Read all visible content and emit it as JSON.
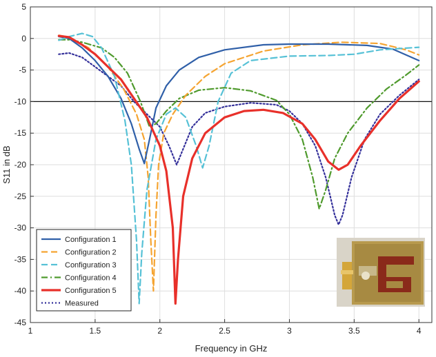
{
  "chart_data": {
    "type": "line",
    "title": "",
    "xlabel": "Frequency in GHz",
    "ylabel": "S11 in dB",
    "xlim": [
      1,
      4.1
    ],
    "ylim": [
      -45,
      5
    ],
    "xticks": [
      "1",
      "1.5",
      "2",
      "2.5",
      "3",
      "3.5",
      "4"
    ],
    "yticks": [
      "5",
      "0",
      "-5",
      "-10",
      "-15",
      "-20",
      "-25",
      "-30",
      "-35",
      "-40",
      "-45"
    ],
    "grid": true,
    "legend_position": "bottom-left",
    "reference_line_y": -10,
    "inset_image": "antenna-prototype-photo",
    "series": [
      {
        "name": "Configuration 1",
        "color": "#2f5fa8",
        "dash": "solid",
        "points": [
          [
            1.22,
            0.3
          ],
          [
            1.3,
            0
          ],
          [
            1.4,
            -1.5
          ],
          [
            1.5,
            -3.5
          ],
          [
            1.6,
            -6
          ],
          [
            1.7,
            -9.5
          ],
          [
            1.78,
            -13.5
          ],
          [
            1.84,
            -17.5
          ],
          [
            1.88,
            -19.8
          ],
          [
            1.92,
            -16
          ],
          [
            1.97,
            -11
          ],
          [
            2.05,
            -7.5
          ],
          [
            2.15,
            -5
          ],
          [
            2.3,
            -3
          ],
          [
            2.5,
            -1.8
          ],
          [
            2.8,
            -1
          ],
          [
            3.0,
            -0.9
          ],
          [
            3.3,
            -0.9
          ],
          [
            3.6,
            -1.1
          ],
          [
            3.8,
            -1.7
          ],
          [
            4.0,
            -3.5
          ]
        ]
      },
      {
        "name": "Configuration 2",
        "color": "#f5a431",
        "dash": "dashed",
        "points": [
          [
            1.22,
            0.5
          ],
          [
            1.3,
            0.2
          ],
          [
            1.45,
            -1.5
          ],
          [
            1.6,
            -4.5
          ],
          [
            1.72,
            -8
          ],
          [
            1.82,
            -12
          ],
          [
            1.88,
            -16
          ],
          [
            1.91,
            -22
          ],
          [
            1.93,
            -32
          ],
          [
            1.95,
            -40
          ],
          [
            1.97,
            -28
          ],
          [
            1.99,
            -20
          ],
          [
            2.03,
            -15
          ],
          [
            2.1,
            -12
          ],
          [
            2.2,
            -9
          ],
          [
            2.35,
            -6
          ],
          [
            2.5,
            -4
          ],
          [
            2.8,
            -2
          ],
          [
            3.1,
            -1
          ],
          [
            3.4,
            -0.6
          ],
          [
            3.7,
            -0.8
          ],
          [
            3.9,
            -1.8
          ],
          [
            4.0,
            -2.6
          ]
        ]
      },
      {
        "name": "Configuration 3",
        "color": "#56c1d6",
        "dash": "dashed",
        "points": [
          [
            1.22,
            -0.3
          ],
          [
            1.3,
            0.3
          ],
          [
            1.4,
            0.8
          ],
          [
            1.48,
            0.3
          ],
          [
            1.55,
            -1.5
          ],
          [
            1.65,
            -6
          ],
          [
            1.73,
            -13
          ],
          [
            1.78,
            -20
          ],
          [
            1.82,
            -32
          ],
          [
            1.84,
            -42
          ],
          [
            1.86,
            -34
          ],
          [
            1.9,
            -24
          ],
          [
            1.97,
            -16
          ],
          [
            2.05,
            -12
          ],
          [
            2.12,
            -11
          ],
          [
            2.2,
            -12.5
          ],
          [
            2.28,
            -17
          ],
          [
            2.33,
            -20.5
          ],
          [
            2.38,
            -17
          ],
          [
            2.45,
            -10
          ],
          [
            2.55,
            -5.5
          ],
          [
            2.7,
            -3.5
          ],
          [
            3.0,
            -2.8
          ],
          [
            3.3,
            -2.7
          ],
          [
            3.5,
            -2.5
          ],
          [
            3.7,
            -1.8
          ],
          [
            4.0,
            -1.4
          ]
        ]
      },
      {
        "name": "Configuration 4",
        "color": "#4f9a2d",
        "dash": "dashdot",
        "points": [
          [
            1.22,
            -0.2
          ],
          [
            1.3,
            -0.2
          ],
          [
            1.4,
            -0.6
          ],
          [
            1.55,
            -1.5
          ],
          [
            1.65,
            -3
          ],
          [
            1.75,
            -5.5
          ],
          [
            1.85,
            -10
          ],
          [
            1.92,
            -14
          ],
          [
            1.97,
            -13.5
          ],
          [
            2.05,
            -11.5
          ],
          [
            2.15,
            -9.5
          ],
          [
            2.3,
            -8.2
          ],
          [
            2.5,
            -7.8
          ],
          [
            2.7,
            -8.3
          ],
          [
            2.9,
            -9.8
          ],
          [
            3.0,
            -12
          ],
          [
            3.1,
            -16
          ],
          [
            3.18,
            -22
          ],
          [
            3.23,
            -27
          ],
          [
            3.28,
            -24
          ],
          [
            3.35,
            -19
          ],
          [
            3.45,
            -15
          ],
          [
            3.6,
            -11
          ],
          [
            3.75,
            -8
          ],
          [
            3.9,
            -5.8
          ],
          [
            4.0,
            -4.2
          ]
        ]
      },
      {
        "name": "Configuration 5",
        "color": "#e8302a",
        "dash": "solid",
        "points": [
          [
            1.22,
            0.4
          ],
          [
            1.3,
            0.2
          ],
          [
            1.4,
            -1
          ],
          [
            1.5,
            -2.5
          ],
          [
            1.6,
            -4.5
          ],
          [
            1.7,
            -6.5
          ],
          [
            1.8,
            -9.5
          ],
          [
            1.9,
            -12.5
          ],
          [
            2.0,
            -17
          ],
          [
            2.05,
            -21
          ],
          [
            2.1,
            -30
          ],
          [
            2.12,
            -42
          ],
          [
            2.14,
            -35
          ],
          [
            2.18,
            -25
          ],
          [
            2.25,
            -19
          ],
          [
            2.35,
            -15
          ],
          [
            2.5,
            -12.5
          ],
          [
            2.65,
            -11.5
          ],
          [
            2.8,
            -11.3
          ],
          [
            2.95,
            -11.8
          ],
          [
            3.1,
            -13.5
          ],
          [
            3.2,
            -16
          ],
          [
            3.3,
            -19.5
          ],
          [
            3.38,
            -20.8
          ],
          [
            3.45,
            -20
          ],
          [
            3.55,
            -17
          ],
          [
            3.7,
            -13
          ],
          [
            3.85,
            -9.5
          ],
          [
            4.0,
            -6.8
          ]
        ]
      },
      {
        "name": "Measured",
        "color": "#34309a",
        "dash": "dotted",
        "points": [
          [
            1.22,
            -2.5
          ],
          [
            1.3,
            -2.3
          ],
          [
            1.4,
            -3
          ],
          [
            1.5,
            -4.5
          ],
          [
            1.6,
            -6
          ],
          [
            1.7,
            -7.5
          ],
          [
            1.8,
            -10
          ],
          [
            1.9,
            -12
          ],
          [
            2.0,
            -14
          ],
          [
            2.07,
            -17
          ],
          [
            2.13,
            -20
          ],
          [
            2.18,
            -17.5
          ],
          [
            2.25,
            -14
          ],
          [
            2.35,
            -11.8
          ],
          [
            2.5,
            -10.8
          ],
          [
            2.7,
            -10.2
          ],
          [
            2.9,
            -10.5
          ],
          [
            3.0,
            -11.5
          ],
          [
            3.1,
            -13.5
          ],
          [
            3.2,
            -17
          ],
          [
            3.28,
            -22
          ],
          [
            3.35,
            -28
          ],
          [
            3.38,
            -29.5
          ],
          [
            3.41,
            -28
          ],
          [
            3.48,
            -22
          ],
          [
            3.58,
            -16
          ],
          [
            3.7,
            -12
          ],
          [
            3.85,
            -9
          ],
          [
            4.0,
            -6.5
          ]
        ]
      }
    ]
  }
}
